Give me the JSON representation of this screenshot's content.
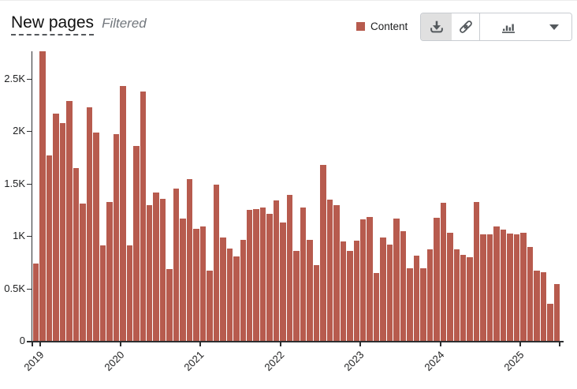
{
  "header": {
    "title": "New pages",
    "subtitle": "Filtered"
  },
  "legend": {
    "label": "Content",
    "color": "#b75b4e"
  },
  "toolbar": {
    "buttons": [
      {
        "name": "download",
        "active": true
      },
      {
        "name": "permalink",
        "active": false
      },
      {
        "name": "chart-type-bar",
        "active": false
      },
      {
        "name": "chart-type-dropdown",
        "active": false
      }
    ],
    "icon_color": "#54595d",
    "active_bg": "#e0e0e0",
    "border_color": "#c8ccd1"
  },
  "chart_data": {
    "type": "bar",
    "title": "New pages",
    "series_name": "Content",
    "bar_color": "#b75b4e",
    "x_start": "2018-12",
    "x_interval": "month",
    "values": [
      740,
      2760,
      1770,
      2170,
      2080,
      2290,
      1650,
      1310,
      2230,
      1990,
      913,
      1323,
      1971,
      2434,
      913,
      1862,
      2377,
      1297,
      1415,
      1358,
      685,
      1450,
      1165,
      1545,
      1070,
      1090,
      670,
      1491,
      984,
      883,
      808,
      960,
      1250,
      1260,
      1270,
      1210,
      1340,
      1130,
      1390,
      860,
      1275,
      965,
      720,
      1675,
      1350,
      1297,
      946,
      858,
      959,
      1160,
      1185,
      645,
      984,
      921,
      1165,
      1047,
      695,
      813,
      695,
      871,
      1172,
      1315,
      1034,
      871,
      821,
      796,
      1323,
      1014,
      1014,
      1089,
      1064,
      1022,
      1014,
      1032,
      898,
      668,
      655,
      354,
      542
    ],
    "ylim": [
      0,
      2765
    ],
    "yticks": [
      {
        "value": 0,
        "label": "0"
      },
      {
        "value": 500,
        "label": "0.5K"
      },
      {
        "value": 1000,
        "label": "1K"
      },
      {
        "value": 1500,
        "label": "1.5K"
      },
      {
        "value": 2000,
        "label": "2K"
      },
      {
        "value": 2500,
        "label": "2.5K"
      }
    ],
    "year_ticks": [
      {
        "label": "2019",
        "month_index": 1
      },
      {
        "label": "2020",
        "month_index": 13
      },
      {
        "label": "2021",
        "month_index": 25
      },
      {
        "label": "2022",
        "month_index": 37
      },
      {
        "label": "2023",
        "month_index": 49
      },
      {
        "label": "2024",
        "month_index": 61
      },
      {
        "label": "2025",
        "month_index": 73
      }
    ],
    "grid": false,
    "legend_position": "top-right"
  }
}
